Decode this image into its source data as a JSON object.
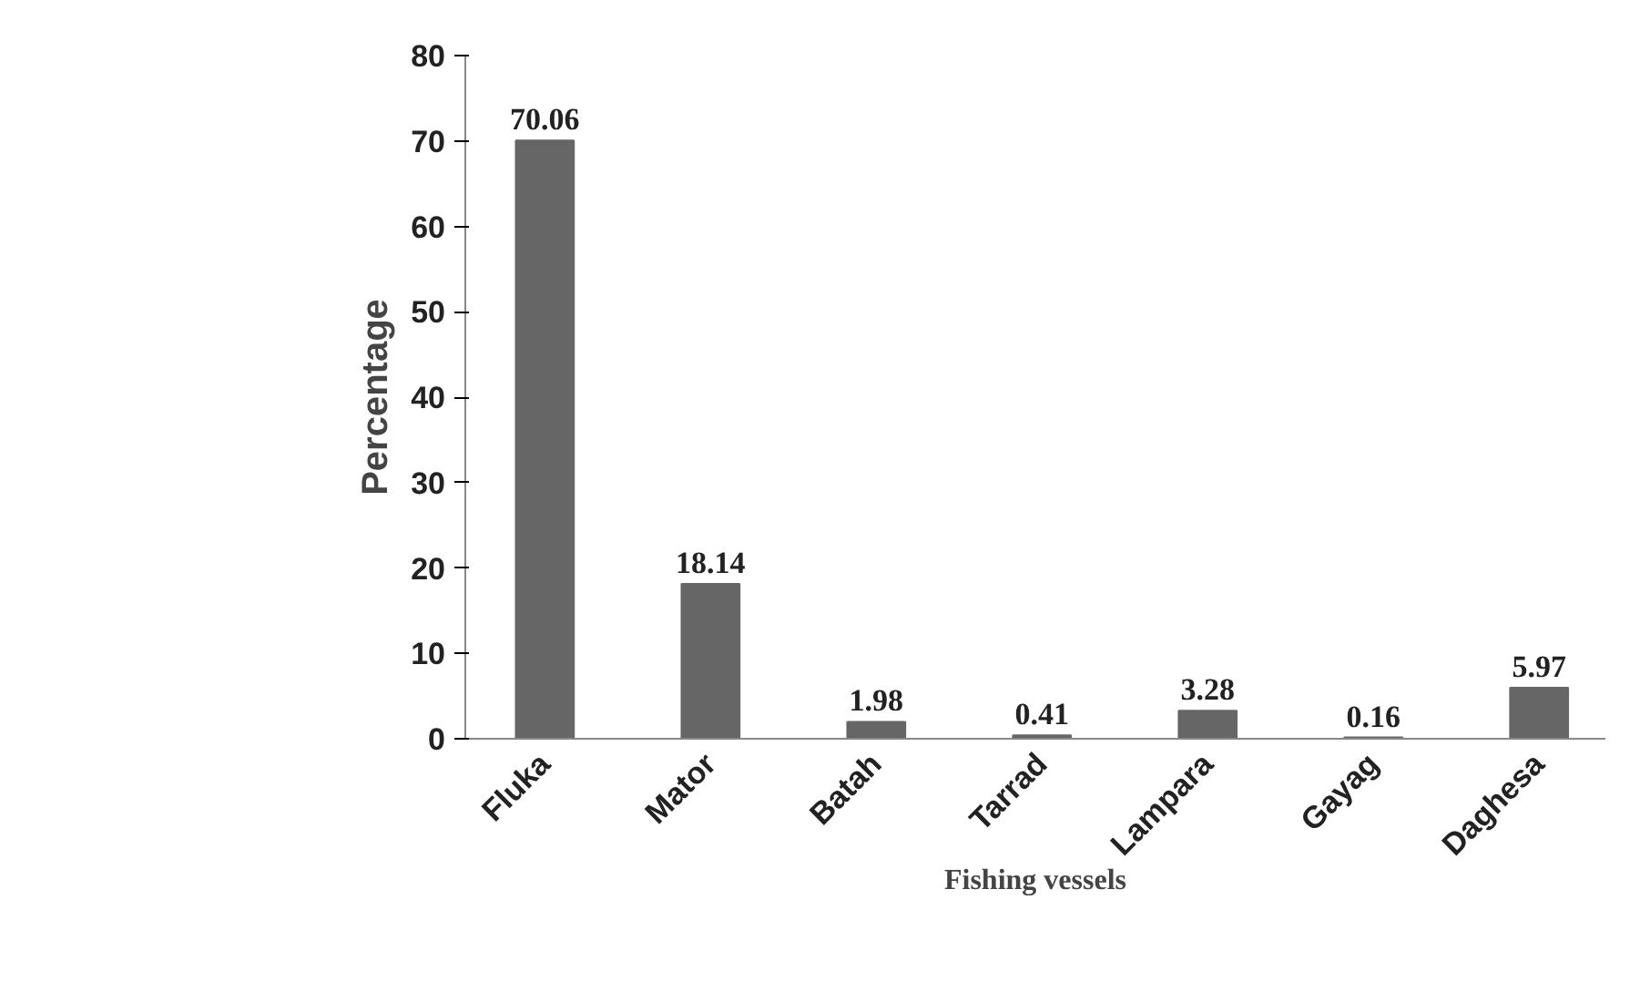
{
  "chart_data": {
    "type": "bar",
    "categories": [
      "Fluka",
      "Mator",
      "Batah",
      "Tarrad",
      "Lampara",
      "Gayag",
      "Daghesa"
    ],
    "values": [
      70.06,
      18.14,
      1.98,
      0.41,
      3.28,
      0.16,
      5.97
    ],
    "color": "#666666",
    "xlabel": "Fishing vessels",
    "ylabel": "Percentage",
    "ylim": [
      0,
      80
    ],
    "yticks": [
      0,
      10,
      20,
      30,
      40,
      50,
      60,
      70,
      80
    ],
    "grid": false,
    "data_labels": true
  }
}
